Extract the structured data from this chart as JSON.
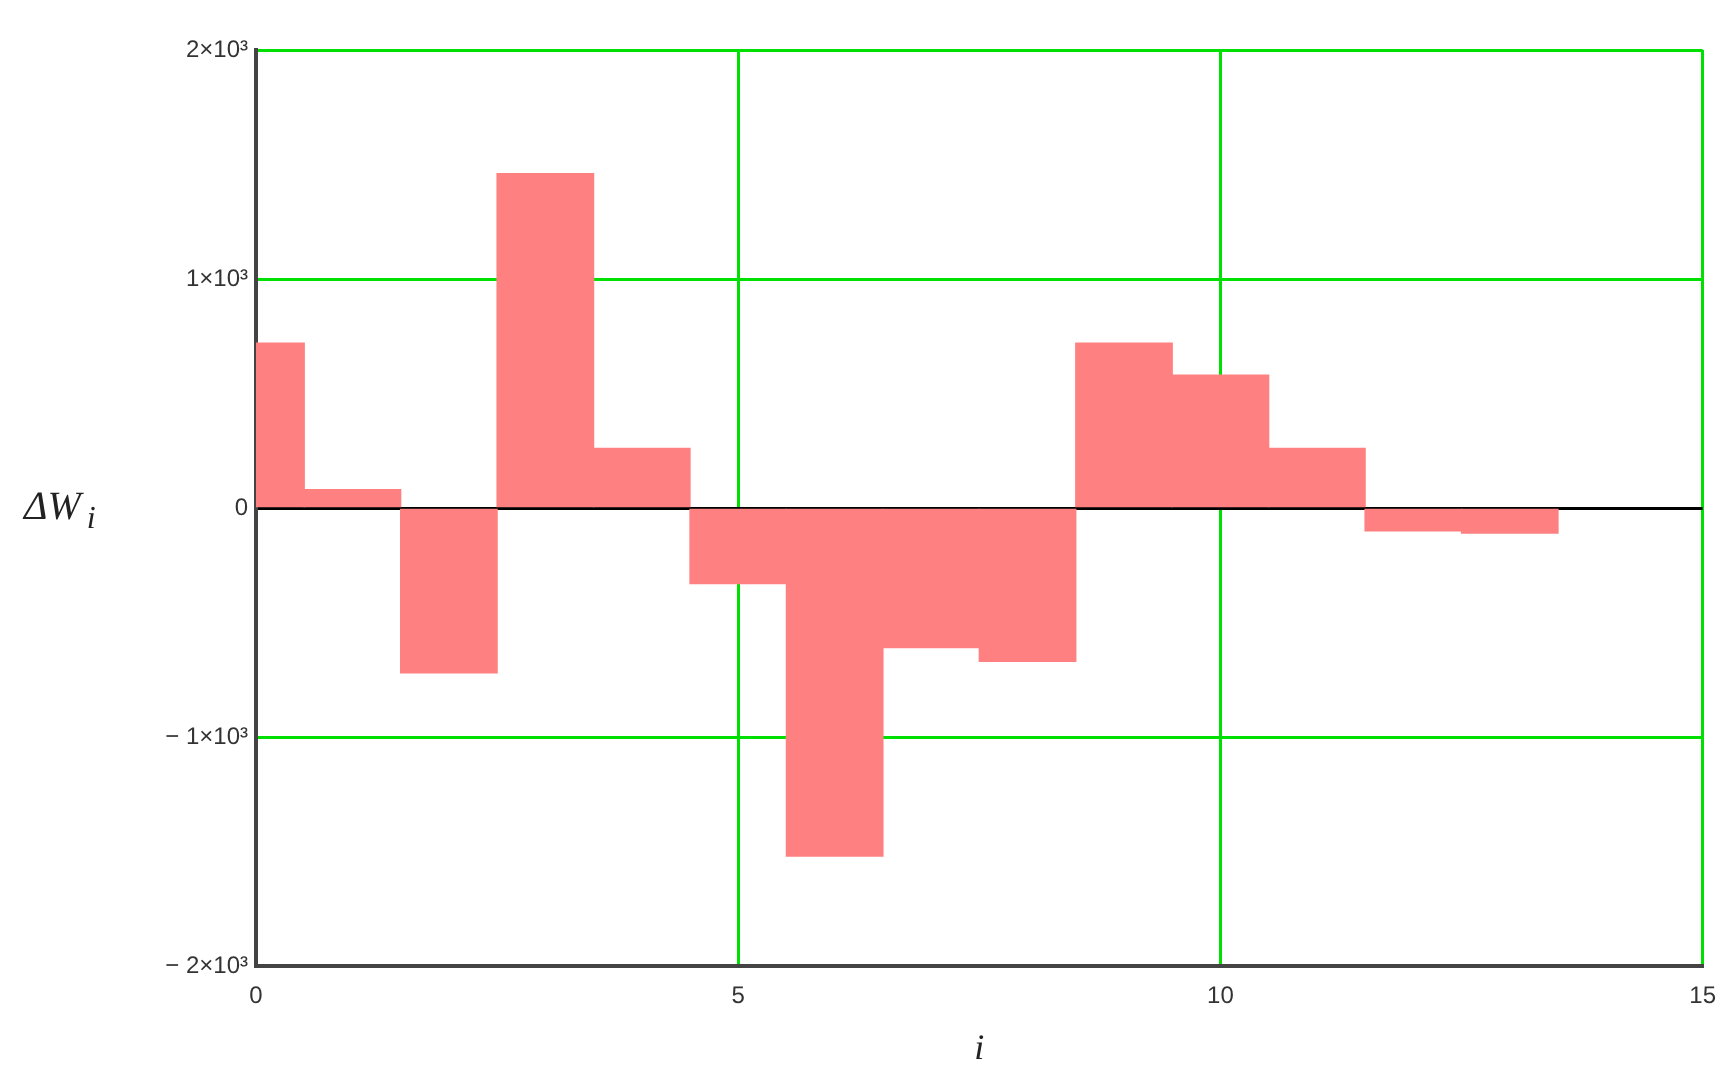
{
  "chart_data": {
    "type": "bar",
    "xlabel": "i",
    "ylabel": "ΔW$_{i}$",
    "x": [
      0,
      1,
      2,
      3,
      4,
      5,
      6,
      7,
      8,
      9,
      10,
      11,
      12,
      13
    ],
    "values": [
      720,
      80,
      -720,
      1460,
      260,
      -330,
      -1520,
      -610,
      -670,
      720,
      580,
      260,
      -100,
      -110
    ],
    "color": "#ff8080",
    "xlim": [
      0,
      15
    ],
    "xticks": [
      0,
      5,
      10,
      15
    ],
    "ylim": [
      -2000,
      2000
    ],
    "yticks": [
      {
        "value": -2000,
        "label": "− 2×10³"
      },
      {
        "value": -1000,
        "label": "− 1×10³"
      },
      0,
      {
        "value": 1000,
        "label": "1×10³"
      },
      {
        "value": 2000,
        "label": "2×10³"
      }
    ],
    "grid": true
  }
}
